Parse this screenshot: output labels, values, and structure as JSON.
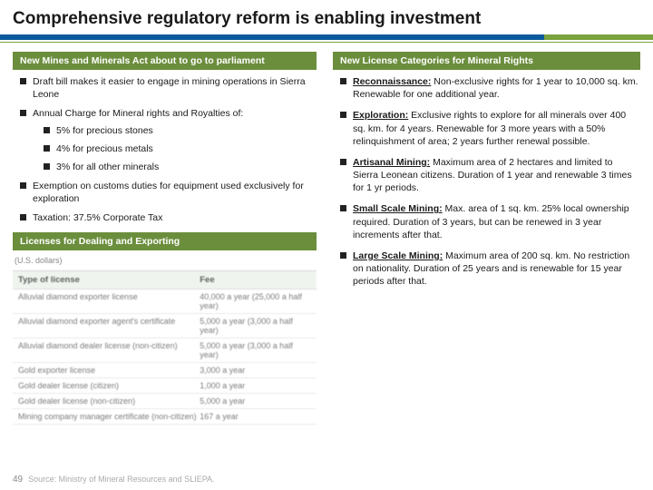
{
  "title": "Comprehensive regulatory reform is enabling investment",
  "slide_number": "49",
  "source_line": "Source: Ministry of Mineral Resources and SLIEPA.",
  "colors": {
    "header_bar_blue": "#0a5a9c",
    "header_bar_green": "#7ba23f",
    "section_bg": "#6b8e3d",
    "text": "#1a1a1a"
  },
  "left": {
    "section1": {
      "header": "New Mines and Minerals Act about to go to parliament",
      "items": {
        "0": "Draft bill makes it easier to engage in mining operations in Sierra Leone",
        "1": "Annual Charge for Mineral rights and Royalties of:",
        "1_sub": {
          "0": "5% for precious stones",
          "1": "4% for precious metals",
          "2": "3% for all other minerals"
        },
        "2": "Exemption on customs duties for equipment used exclusively for exploration",
        "3": "Taxation: 37.5% Corporate Tax"
      }
    },
    "section2": {
      "header": "Licenses for Dealing and Exporting"
    }
  },
  "right": {
    "header": "New License Categories for Mineral Rights",
    "items": {
      "0": {
        "term": "Reconnaissance:",
        "body": " Non-exclusive rights for 1 year to 10,000 sq. km. Renewable for one additional year."
      },
      "1": {
        "term": "Exploration:",
        "body": " Exclusive rights to explore for all minerals over 400 sq. km. for 4 years. Renewable for 3 more years with a 50% relinquishment of area; 2 years further renewal possible."
      },
      "2": {
        "term": "Artisanal Mining:",
        "body": " Maximum area of 2 hectares and limited to Sierra Leonean citizens. Duration of 1 year and renewable 3 times for 1 yr periods."
      },
      "3": {
        "term": "Small Scale Mining:",
        "body": " Max. area of 1 sq. km. 25% local ownership required. Duration of 3 years, but can be renewed in 3 year increments after that."
      },
      "4": {
        "term": "Large Scale Mining:",
        "body": " Maximum area of 200 sq. km. No restriction on nationality. Duration of 25 years and is renewable for 15 year periods after that."
      }
    }
  },
  "table": {
    "head": {
      "col1": "Type of license",
      "col2": "Fee"
    },
    "currency_note": "(U.S. dollars)",
    "rows": {
      "0": {
        "c1": "Alluvial diamond exporter license",
        "c2": "40,000 a year (25,000 a half year)"
      },
      "1": {
        "c1": "Alluvial diamond exporter agent's certificate",
        "c2": "5,000 a year (3,000 a half year)"
      },
      "2": {
        "c1": "Alluvial diamond dealer license (non-citizen)",
        "c2": "5,000 a year (3,000 a half year)"
      },
      "3": {
        "c1": "Gold exporter license",
        "c2": "3,000 a year"
      },
      "4": {
        "c1": "Gold dealer license (citizen)",
        "c2": "1,000 a year"
      },
      "5": {
        "c1": "Gold dealer license (non-citizen)",
        "c2": "5,000 a year"
      },
      "6": {
        "c1": "Mining company manager certificate (non-citizen)",
        "c2": "167 a year"
      }
    }
  }
}
